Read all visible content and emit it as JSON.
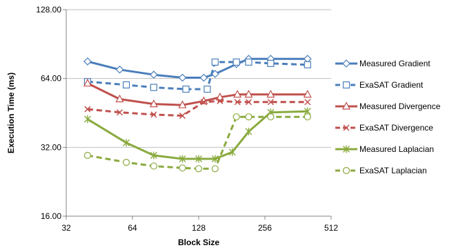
{
  "chart_data": {
    "type": "line",
    "title": "",
    "xlabel": "Block Size",
    "ylabel": "Execution Time (ms)",
    "x_scale": "log2",
    "y_scale": "log2",
    "xlim": [
      32,
      512
    ],
    "ylim": [
      16,
      128
    ],
    "x_ticks": [
      "32",
      "64",
      "128",
      "256",
      "512"
    ],
    "y_ticks": [
      "16.00",
      "32.00",
      "64.00",
      "128.00"
    ],
    "grid": "horizontal",
    "legend_position": "right",
    "colors": {
      "gradient": "#4A7EBB",
      "divergence": "#C0504D",
      "laplacian": "#8AAA3E"
    },
    "series": [
      {
        "name": "Measured Gradient",
        "color": "#4A7EBB",
        "line": "solid",
        "marker": "diamond",
        "x": [
          40,
          56,
          80,
          108,
          135,
          152,
          190,
          216,
          272,
          400
        ],
        "y": [
          76,
          70,
          66.5,
          64.5,
          64.5,
          67,
          74,
          78,
          78,
          78
        ]
      },
      {
        "name": "ExaSAT Gradient",
        "color": "#4A7EBB",
        "line": "dashed",
        "marker": "square",
        "x": [
          40,
          60,
          80,
          112,
          140,
          152,
          190,
          216,
          272,
          400
        ],
        "y": [
          62,
          60,
          58.5,
          57.5,
          57.5,
          75.5,
          75.5,
          75.5,
          74.5,
          73.5
        ]
      },
      {
        "name": "Measured Divergence",
        "color": "#C0504D",
        "line": "solid",
        "marker": "triangle",
        "x": [
          40,
          56,
          80,
          108,
          135,
          160,
          192,
          216,
          272,
          400
        ],
        "y": [
          61,
          52,
          49.5,
          49,
          51,
          53,
          54.5,
          54.5,
          54.5,
          54.5
        ]
      },
      {
        "name": "ExaSAT Divergence",
        "color": "#C0504D",
        "line": "dashed",
        "marker": "x",
        "x": [
          40,
          56,
          80,
          108,
          135,
          160,
          192,
          216,
          272,
          400
        ],
        "y": [
          47,
          45.5,
          44.5,
          44,
          50.5,
          51,
          50.5,
          50.5,
          50.5,
          50.5
        ]
      },
      {
        "name": "Measured Laplacian",
        "color": "#8AAA3E",
        "line": "solid",
        "marker": "star",
        "x": [
          40,
          60,
          80,
          108,
          128,
          152,
          182,
          216,
          272,
          400
        ],
        "y": [
          42.5,
          33.5,
          29.5,
          28.5,
          28.5,
          28.5,
          30.5,
          37.5,
          45.5,
          46
        ]
      },
      {
        "name": "ExaSAT Laplacian",
        "color": "#8AAA3E",
        "line": "dashed",
        "marker": "circle",
        "x": [
          40,
          60,
          80,
          108,
          128,
          152,
          190,
          216,
          272,
          400
        ],
        "y": [
          29.5,
          27.5,
          26.5,
          26,
          25.8,
          25.8,
          43.5,
          43.5,
          43.5,
          43.5
        ]
      }
    ]
  }
}
